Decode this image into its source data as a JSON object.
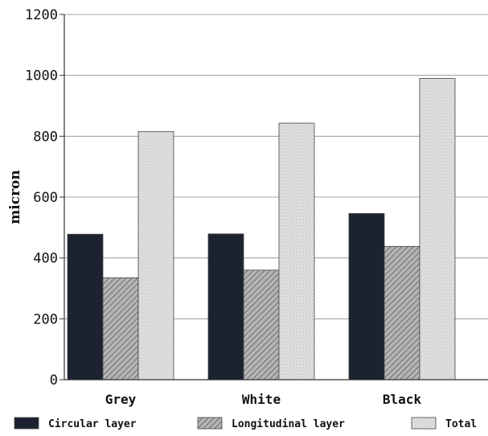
{
  "chart_data": {
    "type": "bar",
    "ylabel": "micron",
    "xlabel": "",
    "ylim": [
      0,
      1200
    ],
    "yticks": [
      0,
      200,
      400,
      600,
      800,
      1000,
      1200
    ],
    "grid": true,
    "legend_position": "bottom",
    "categories": [
      "Grey",
      "White",
      "Black"
    ],
    "series": [
      {
        "name": "Circular layer",
        "values": [
          478,
          479,
          546
        ],
        "color": "#1c2230",
        "pattern": "solid"
      },
      {
        "name": "Longitudinal layer",
        "values": [
          335,
          360,
          438
        ],
        "color": "#9a9a9a",
        "pattern": "hatch"
      },
      {
        "name": "Total",
        "values": [
          815,
          843,
          990
        ],
        "color": "#dcdcdc",
        "pattern": "dots"
      }
    ]
  }
}
